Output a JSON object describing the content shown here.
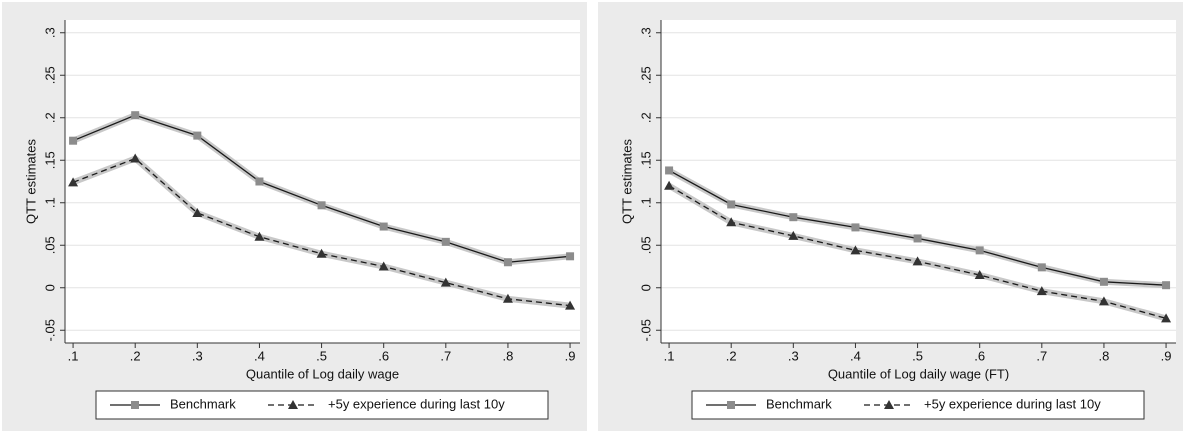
{
  "chart_data": [
    {
      "type": "line",
      "xlabel": "Quantile of Log daily wage",
      "ylabel": "QTT estimates",
      "x": [
        0.1,
        0.2,
        0.3,
        0.4,
        0.5,
        0.6,
        0.7,
        0.8,
        0.9
      ],
      "series": [
        {
          "name": "Benchmark",
          "color": "#1a1a1a",
          "marker": "square",
          "marker_color": "#8c8c8c",
          "dashed": false,
          "values": [
            0.173,
            0.203,
            0.179,
            0.125,
            0.097,
            0.072,
            0.054,
            0.03,
            0.037
          ]
        },
        {
          "name": "+5y experience during last 10y",
          "color": "#1a1a1a",
          "marker": "triangle",
          "marker_color": "#333333",
          "dashed": true,
          "values": [
            0.124,
            0.152,
            0.088,
            0.06,
            0.04,
            0.025,
            0.006,
            -0.013,
            -0.021
          ]
        }
      ],
      "xlim": [
        0.087,
        0.916
      ],
      "ylim": [
        -0.065,
        0.315
      ],
      "xticks": [
        {
          "value": 0.1,
          "label": ".1"
        },
        {
          "value": 0.2,
          "label": ".2"
        },
        {
          "value": 0.3,
          "label": ".3"
        },
        {
          "value": 0.4,
          "label": ".4"
        },
        {
          "value": 0.5,
          "label": ".5"
        },
        {
          "value": 0.6,
          "label": ".6"
        },
        {
          "value": 0.7,
          "label": ".7"
        },
        {
          "value": 0.8,
          "label": ".8"
        },
        {
          "value": 0.9,
          "label": ".9"
        }
      ],
      "yticks": [
        {
          "value": -0.05,
          "label": "-.05"
        },
        0,
        {
          "value": 0.05,
          "label": ".05"
        },
        {
          "value": 0.1,
          "label": ".1"
        },
        {
          "value": 0.15,
          "label": ".15"
        },
        {
          "value": 0.2,
          "label": ".2"
        },
        {
          "value": 0.25,
          "label": ".25"
        },
        {
          "value": 0.3,
          "label": ".3"
        }
      ],
      "grid": true
    },
    {
      "type": "line",
      "xlabel": "Quantile of Log daily wage (FT)",
      "ylabel": "QTT estimates",
      "x": [
        0.1,
        0.2,
        0.3,
        0.4,
        0.5,
        0.6,
        0.7,
        0.8,
        0.9
      ],
      "series": [
        {
          "name": "Benchmark",
          "color": "#1a1a1a",
          "marker": "square",
          "marker_color": "#8c8c8c",
          "dashed": false,
          "values": [
            0.138,
            0.098,
            0.083,
            0.071,
            0.058,
            0.044,
            0.024,
            0.007,
            0.003
          ]
        },
        {
          "name": "+5y experience during last 10y",
          "color": "#1a1a1a",
          "marker": "triangle",
          "marker_color": "#333333",
          "dashed": true,
          "values": [
            0.12,
            0.077,
            0.061,
            0.044,
            0.031,
            0.015,
            -0.004,
            -0.016,
            -0.036
          ]
        }
      ],
      "xlim": [
        0.087,
        0.916
      ],
      "ylim": [
        -0.065,
        0.315
      ],
      "xticks": [
        {
          "value": 0.1,
          "label": ".1"
        },
        {
          "value": 0.2,
          "label": ".2"
        },
        {
          "value": 0.3,
          "label": ".3"
        },
        {
          "value": 0.4,
          "label": ".4"
        },
        {
          "value": 0.5,
          "label": ".5"
        },
        {
          "value": 0.6,
          "label": ".6"
        },
        {
          "value": 0.7,
          "label": ".7"
        },
        {
          "value": 0.8,
          "label": ".8"
        },
        {
          "value": 0.9,
          "label": ".9"
        }
      ],
      "yticks": [
        {
          "value": -0.05,
          "label": "-.05"
        },
        0,
        {
          "value": 0.05,
          "label": ".05"
        },
        {
          "value": 0.1,
          "label": ".1"
        },
        {
          "value": 0.15,
          "label": ".15"
        },
        {
          "value": 0.2,
          "label": ".2"
        },
        {
          "value": 0.25,
          "label": ".25"
        },
        {
          "value": 0.3,
          "label": ".3"
        }
      ],
      "grid": true
    }
  ]
}
